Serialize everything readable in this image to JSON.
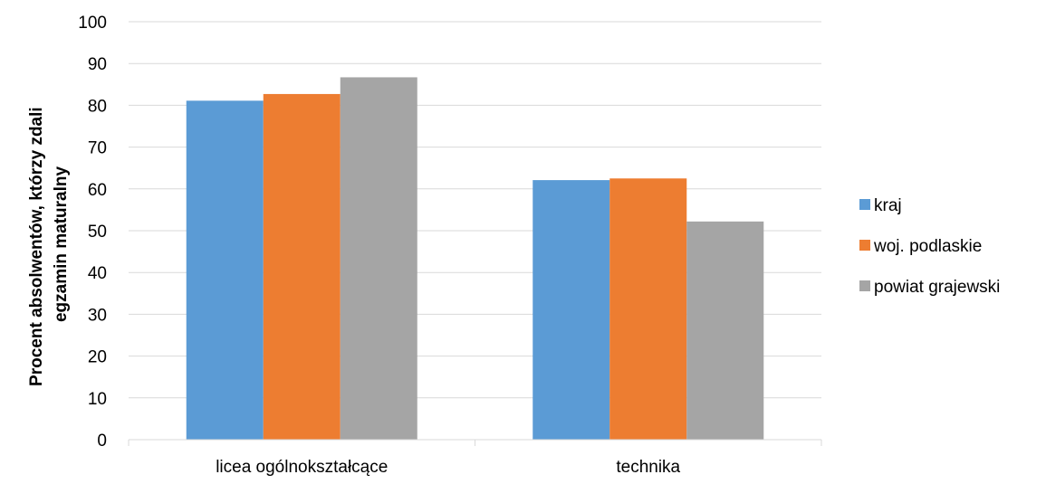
{
  "chart_data": {
    "type": "bar",
    "categories": [
      "licea ogólnokształcące",
      "technika"
    ],
    "series": [
      {
        "name": "kraj",
        "color": "#5B9BD5",
        "values": [
          81.1,
          62.1
        ]
      },
      {
        "name": "woj. podlaskie",
        "color": "#ED7D31",
        "values": [
          82.7,
          62.5
        ]
      },
      {
        "name": "powiat grajewski",
        "color": "#A5A5A5",
        "values": [
          86.7,
          52.2
        ]
      }
    ],
    "ylabel": [
      "Procent absolwentów, którzy zdali",
      "egzamin maturalny"
    ],
    "ylim": [
      0,
      100
    ],
    "ytick_step": 10,
    "grid": true,
    "legend_position": "right"
  }
}
